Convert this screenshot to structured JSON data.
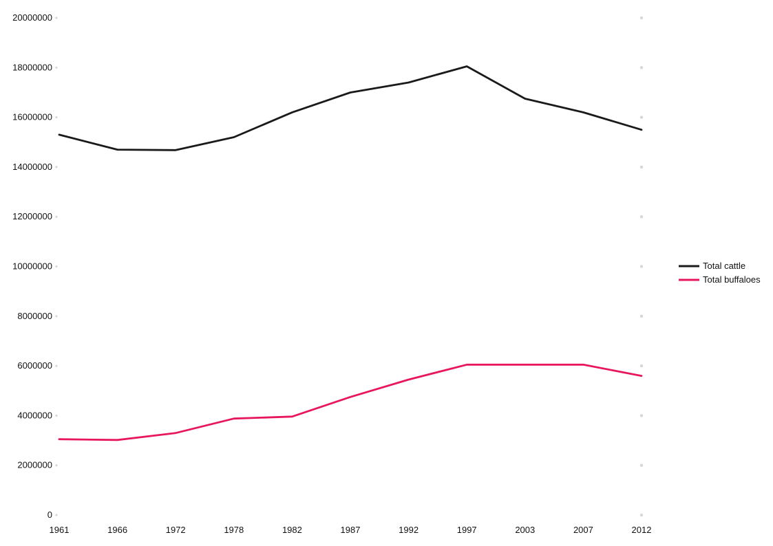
{
  "chart_data": {
    "type": "line",
    "title": "",
    "xlabel": "",
    "ylabel": "",
    "x": [
      "1961",
      "1966",
      "1972",
      "1978",
      "1982",
      "1987",
      "1992",
      "1997",
      "2003",
      "2007",
      "2012"
    ],
    "series": [
      {
        "name": "Total cattle",
        "color": "#1a1a1a",
        "values": [
          15300000,
          14700000,
          14680000,
          15200000,
          16200000,
          17000000,
          17400000,
          18050000,
          16750000,
          16200000,
          15500000
        ]
      },
      {
        "name": "Total buffaloes",
        "color": "#e8175d",
        "values": [
          3050000,
          3020000,
          3300000,
          3880000,
          3960000,
          4750000,
          5450000,
          6050000,
          6050000,
          6050000,
          5600000
        ]
      }
    ],
    "ylim": [
      0,
      20000000
    ],
    "yticks": [
      "0",
      "2000000",
      "4000000",
      "6000000",
      "8000000",
      "10000000",
      "12000000",
      "14000000",
      "16000000",
      "18000000",
      "20000000"
    ],
    "grid": false,
    "legend_position": "right"
  }
}
